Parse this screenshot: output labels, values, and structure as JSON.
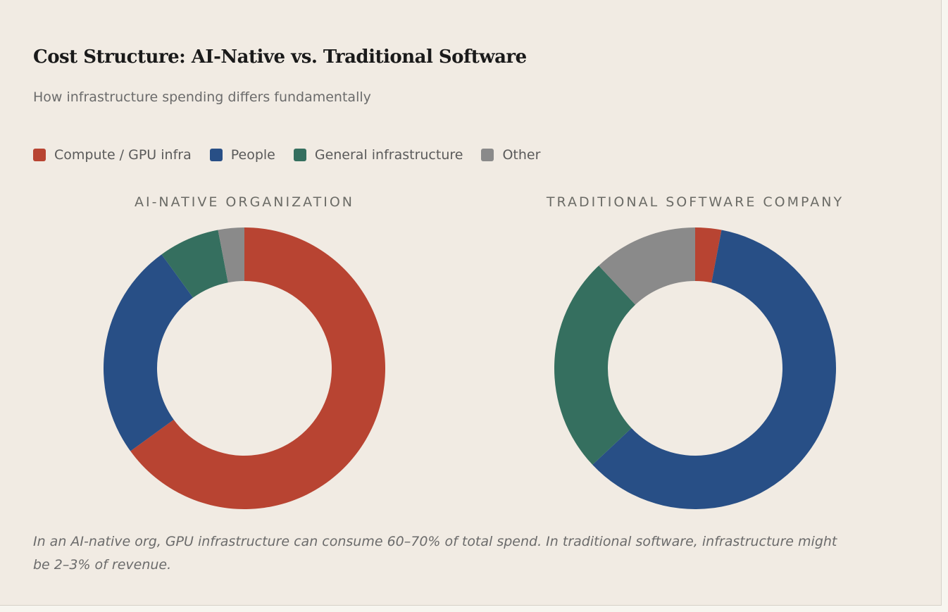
{
  "title": "Cost Structure: AI-Native vs. Traditional Software",
  "subtitle": "How infrastructure spending differs fundamentally",
  "note": "In an AI-native org, GPU infrastructure can consume 60–70% of total spend. In traditional software, infrastructure might be 2–3% of revenue.",
  "legend": [
    {
      "label": "Compute / GPU infra",
      "color": "#b84432"
    },
    {
      "label": "People",
      "color": "#284f86"
    },
    {
      "label": "General infrastructure",
      "color": "#356f5f"
    },
    {
      "label": "Other",
      "color": "#8a8a8a"
    }
  ],
  "chart_data": [
    {
      "type": "pie",
      "title": "AI-NATIVE ORGANIZATION",
      "categories": [
        "Compute / GPU infra",
        "People",
        "General infrastructure",
        "Other"
      ],
      "values": [
        65,
        25,
        7,
        3
      ]
    },
    {
      "type": "pie",
      "title": "TRADITIONAL SOFTWARE COMPANY",
      "categories": [
        "Compute / GPU infra",
        "People",
        "General infrastructure",
        "Other"
      ],
      "values": [
        3,
        60,
        25,
        12
      ]
    }
  ]
}
